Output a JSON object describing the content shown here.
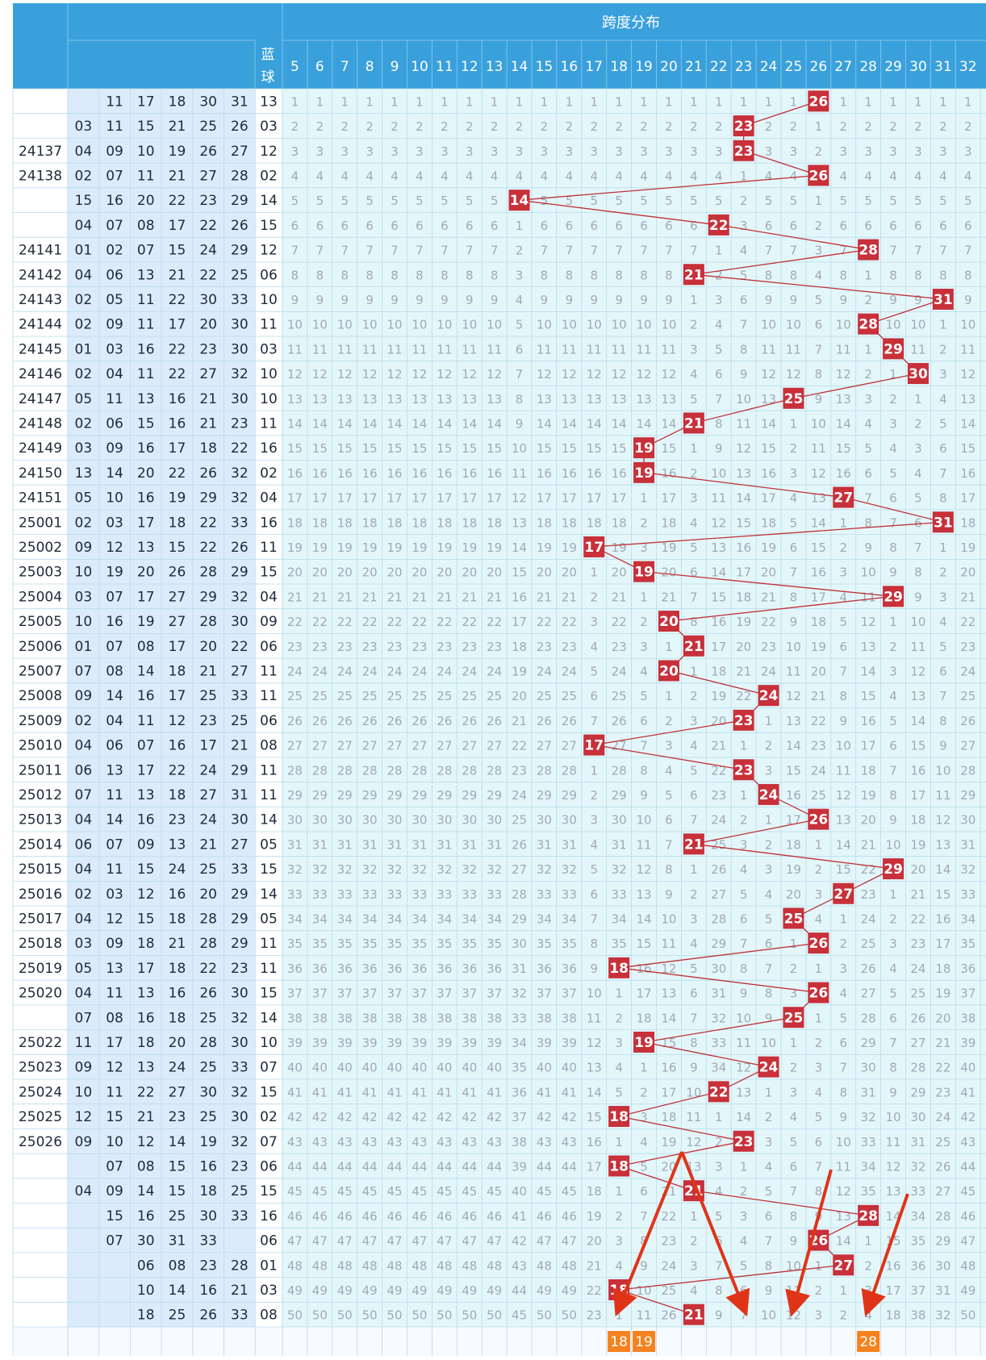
{
  "header": {
    "span_title": "跨度分布",
    "blue_label": "蓝球"
  },
  "span_columns": [
    5,
    6,
    7,
    8,
    9,
    10,
    11,
    12,
    13,
    14,
    15,
    16,
    17,
    18,
    19,
    20,
    21,
    22,
    23,
    24,
    25,
    26,
    27,
    28,
    29,
    30,
    31,
    32
  ],
  "colors": {
    "header_bg": "#3aa0dc",
    "header_text": "#ffffff",
    "grid_bg": "#e3f7fb",
    "red_ball_bg": "#dcebfb",
    "blue_col_bg": "#ffffff",
    "hit_bg": "#c8303a",
    "miss_text": "#a1a9b8",
    "line": "#c03035",
    "arrow": "#e03418",
    "forecast_bg": "#f5821f"
  },
  "chart_data": {
    "type": "table",
    "rows": [
      {
        "issue": "",
        "reds": [
          "",
          "11",
          "17",
          "18",
          "30",
          "31"
        ],
        "blue": "13",
        "span": 26
      },
      {
        "issue": "",
        "reds": [
          "03",
          "11",
          "15",
          "21",
          "25",
          "26"
        ],
        "blue": "03",
        "span": 23
      },
      {
        "issue": "24137",
        "reds": [
          "04",
          "09",
          "10",
          "19",
          "26",
          "27"
        ],
        "blue": "12",
        "span": 23
      },
      {
        "issue": "24138",
        "reds": [
          "02",
          "07",
          "11",
          "21",
          "27",
          "28"
        ],
        "blue": "02",
        "span": 26
      },
      {
        "issue": "",
        "reds": [
          "15",
          "16",
          "20",
          "22",
          "23",
          "29"
        ],
        "blue": "14",
        "span": 14
      },
      {
        "issue": "",
        "reds": [
          "04",
          "07",
          "08",
          "17",
          "22",
          "26"
        ],
        "blue": "15",
        "span": 22
      },
      {
        "issue": "24141",
        "reds": [
          "01",
          "02",
          "07",
          "15",
          "24",
          "29"
        ],
        "blue": "12",
        "span": 28
      },
      {
        "issue": "24142",
        "reds": [
          "04",
          "06",
          "13",
          "21",
          "22",
          "25"
        ],
        "blue": "06",
        "span": 21
      },
      {
        "issue": "24143",
        "reds": [
          "02",
          "05",
          "11",
          "22",
          "30",
          "33"
        ],
        "blue": "10",
        "span": 31
      },
      {
        "issue": "24144",
        "reds": [
          "02",
          "09",
          "11",
          "17",
          "20",
          "30"
        ],
        "blue": "11",
        "span": 28
      },
      {
        "issue": "24145",
        "reds": [
          "01",
          "03",
          "16",
          "22",
          "23",
          "30"
        ],
        "blue": "03",
        "span": 29
      },
      {
        "issue": "24146",
        "reds": [
          "02",
          "04",
          "11",
          "22",
          "27",
          "32"
        ],
        "blue": "10",
        "span": 30
      },
      {
        "issue": "24147",
        "reds": [
          "05",
          "11",
          "13",
          "16",
          "21",
          "30"
        ],
        "blue": "10",
        "span": 25
      },
      {
        "issue": "24148",
        "reds": [
          "02",
          "06",
          "15",
          "16",
          "21",
          "23"
        ],
        "blue": "11",
        "span": 21
      },
      {
        "issue": "24149",
        "reds": [
          "03",
          "09",
          "16",
          "17",
          "18",
          "22"
        ],
        "blue": "16",
        "span": 19
      },
      {
        "issue": "24150",
        "reds": [
          "13",
          "14",
          "20",
          "22",
          "26",
          "32"
        ],
        "blue": "02",
        "span": 19
      },
      {
        "issue": "24151",
        "reds": [
          "05",
          "10",
          "16",
          "19",
          "29",
          "32"
        ],
        "blue": "04",
        "span": 27
      },
      {
        "issue": "25001",
        "reds": [
          "02",
          "03",
          "17",
          "18",
          "22",
          "33"
        ],
        "blue": "16",
        "span": 31
      },
      {
        "issue": "25002",
        "reds": [
          "09",
          "12",
          "13",
          "15",
          "22",
          "26"
        ],
        "blue": "11",
        "span": 17
      },
      {
        "issue": "25003",
        "reds": [
          "10",
          "19",
          "20",
          "26",
          "28",
          "29"
        ],
        "blue": "15",
        "span": 19
      },
      {
        "issue": "25004",
        "reds": [
          "03",
          "07",
          "17",
          "27",
          "29",
          "32"
        ],
        "blue": "04",
        "span": 29
      },
      {
        "issue": "25005",
        "reds": [
          "10",
          "16",
          "19",
          "27",
          "28",
          "30"
        ],
        "blue": "09",
        "span": 20
      },
      {
        "issue": "25006",
        "reds": [
          "01",
          "07",
          "08",
          "17",
          "20",
          "22"
        ],
        "blue": "06",
        "span": 21
      },
      {
        "issue": "25007",
        "reds": [
          "07",
          "08",
          "14",
          "18",
          "21",
          "27"
        ],
        "blue": "11",
        "span": 20
      },
      {
        "issue": "25008",
        "reds": [
          "09",
          "14",
          "16",
          "17",
          "25",
          "33"
        ],
        "blue": "11",
        "span": 24
      },
      {
        "issue": "25009",
        "reds": [
          "02",
          "04",
          "11",
          "12",
          "23",
          "25"
        ],
        "blue": "06",
        "span": 23
      },
      {
        "issue": "25010",
        "reds": [
          "04",
          "06",
          "07",
          "16",
          "17",
          "21"
        ],
        "blue": "08",
        "span": 17
      },
      {
        "issue": "25011",
        "reds": [
          "06",
          "13",
          "17",
          "22",
          "24",
          "29"
        ],
        "blue": "11",
        "span": 23
      },
      {
        "issue": "25012",
        "reds": [
          "07",
          "11",
          "13",
          "18",
          "27",
          "31"
        ],
        "blue": "11",
        "span": 24
      },
      {
        "issue": "25013",
        "reds": [
          "04",
          "14",
          "16",
          "23",
          "24",
          "30"
        ],
        "blue": "14",
        "span": 26
      },
      {
        "issue": "25014",
        "reds": [
          "06",
          "07",
          "09",
          "13",
          "21",
          "27"
        ],
        "blue": "05",
        "span": 21
      },
      {
        "issue": "25015",
        "reds": [
          "04",
          "11",
          "15",
          "24",
          "25",
          "33"
        ],
        "blue": "15",
        "span": 29
      },
      {
        "issue": "25016",
        "reds": [
          "02",
          "03",
          "12",
          "16",
          "20",
          "29"
        ],
        "blue": "14",
        "span": 27
      },
      {
        "issue": "25017",
        "reds": [
          "04",
          "12",
          "15",
          "18",
          "28",
          "29"
        ],
        "blue": "05",
        "span": 25
      },
      {
        "issue": "25018",
        "reds": [
          "03",
          "09",
          "18",
          "21",
          "28",
          "29"
        ],
        "blue": "11",
        "span": 26
      },
      {
        "issue": "25019",
        "reds": [
          "05",
          "13",
          "17",
          "18",
          "22",
          "23"
        ],
        "blue": "11",
        "span": 18
      },
      {
        "issue": "25020",
        "reds": [
          "04",
          "11",
          "13",
          "16",
          "26",
          "30"
        ],
        "blue": "15",
        "span": 26
      },
      {
        "issue": "",
        "reds": [
          "07",
          "08",
          "16",
          "18",
          "25",
          "32"
        ],
        "blue": "14",
        "span": 25
      },
      {
        "issue": "25022",
        "reds": [
          "11",
          "17",
          "18",
          "20",
          "28",
          "30"
        ],
        "blue": "10",
        "span": 19
      },
      {
        "issue": "25023",
        "reds": [
          "09",
          "12",
          "13",
          "24",
          "25",
          "33"
        ],
        "blue": "07",
        "span": 24
      },
      {
        "issue": "25024",
        "reds": [
          "10",
          "11",
          "22",
          "27",
          "30",
          "32"
        ],
        "blue": "15",
        "span": 22
      },
      {
        "issue": "25025",
        "reds": [
          "12",
          "15",
          "21",
          "23",
          "25",
          "30"
        ],
        "blue": "02",
        "span": 18
      },
      {
        "issue": "25026",
        "reds": [
          "09",
          "10",
          "12",
          "14",
          "19",
          "32"
        ],
        "blue": "07",
        "span": 23
      },
      {
        "issue": "",
        "reds": [
          "",
          "07",
          "08",
          "15",
          "16",
          "23"
        ],
        "blue": "06",
        "span": 18
      },
      {
        "issue": "",
        "reds": [
          "04",
          "09",
          "14",
          "15",
          "18",
          "25"
        ],
        "blue": "15",
        "span": 21
      },
      {
        "issue": "",
        "reds": [
          "",
          "15",
          "16",
          "25",
          "30",
          "33"
        ],
        "blue": "16",
        "span": 28
      },
      {
        "issue": "",
        "reds": [
          "",
          "07",
          "30",
          "31",
          "33",
          ""
        ],
        "blue": "06",
        "span": 26
      },
      {
        "issue": "",
        "reds": [
          "",
          "",
          "06",
          "08",
          "23",
          "28"
        ],
        "blue": "01",
        "span": 27
      },
      {
        "issue": "",
        "reds": [
          "",
          "",
          "10",
          "14",
          "16",
          "21"
        ],
        "blue": "03",
        "span": 18
      },
      {
        "issue": "",
        "reds": [
          "",
          "",
          "18",
          "25",
          "26",
          "33"
        ],
        "blue": "08",
        "span": 21
      }
    ],
    "forecast": [
      {
        "span": 18,
        "label": "18"
      },
      {
        "span": 19,
        "label": "19"
      },
      {
        "span": 28,
        "label": "28"
      }
    ],
    "arrow_targets": [
      18,
      23,
      25,
      28
    ]
  }
}
